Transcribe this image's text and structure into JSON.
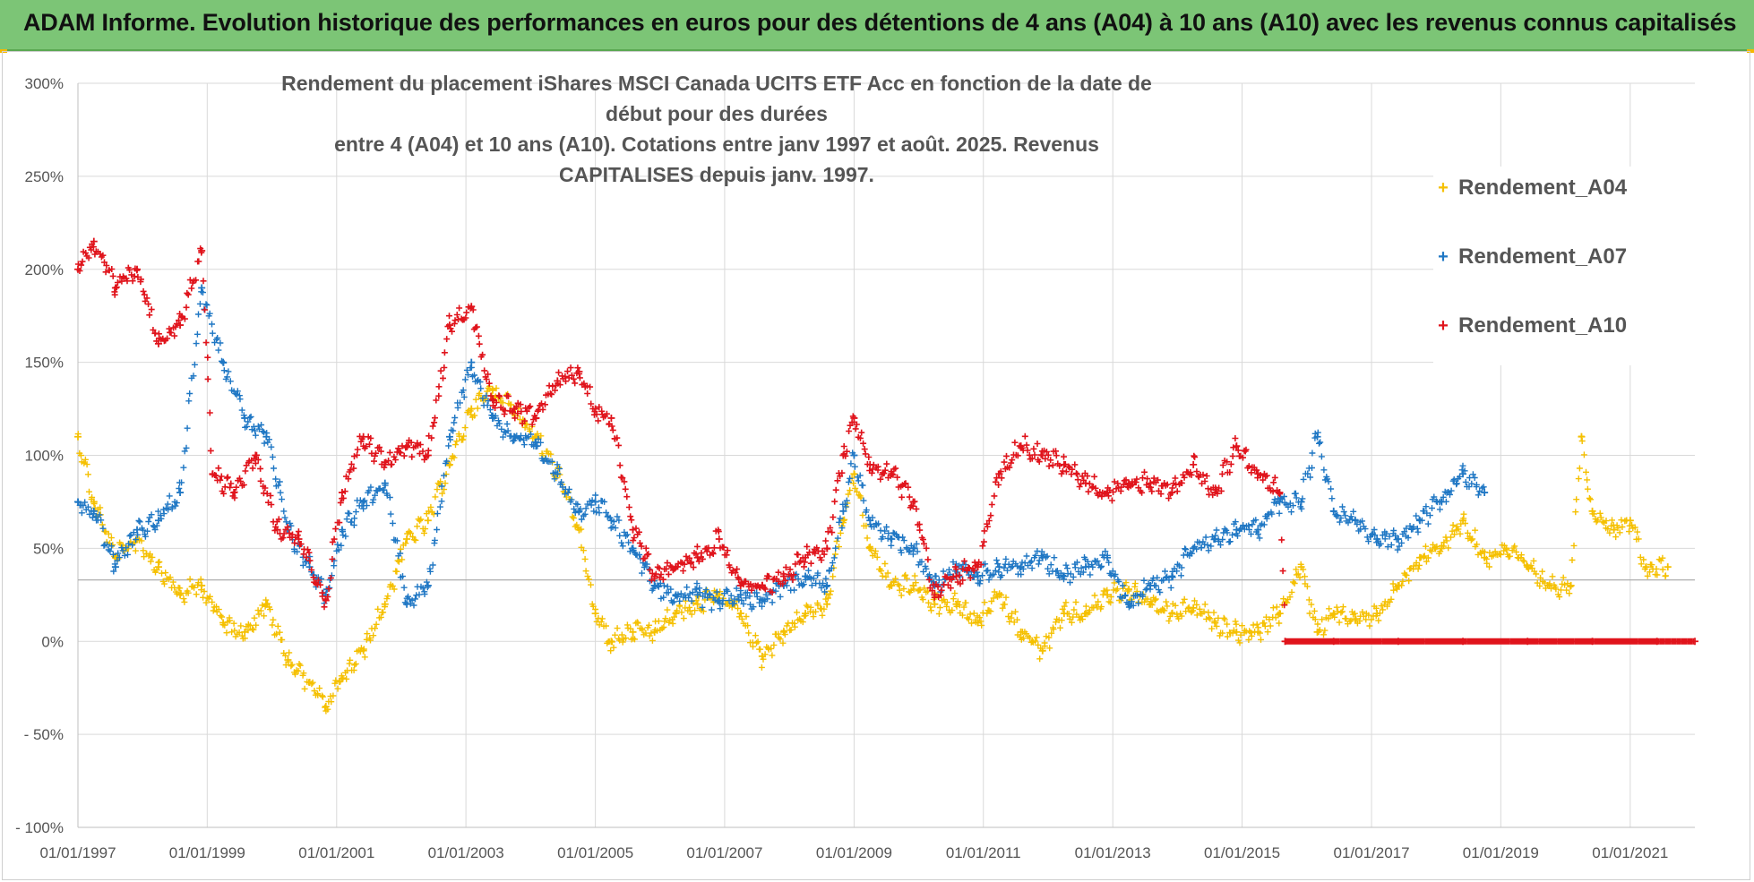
{
  "header": {
    "title": "ADAM Informe. Evolution historique des performances en euros pour des détentions de 4 ans (A04) à 10 ans (A10) avec les revenus connus capitalisés"
  },
  "chart_data": {
    "type": "scatter",
    "title_lines": [
      "Rendement du placement iShares MSCI Canada UCITS ETF Acc en fonction de la date de début pour des durées",
      "entre 4 (A04) et 10 ans (A10).  Cotations entre janv 1997 et août. 2025. Revenus CAPITALISES depuis janv. 1997."
    ],
    "xlabel": "",
    "ylabel": "",
    "x_range": [
      "1997-01-01",
      "2022-01-01"
    ],
    "ylim": [
      -100,
      300
    ],
    "y_ticks": [
      300,
      250,
      200,
      150,
      100,
      50,
      0,
      -50,
      -100
    ],
    "y_tick_labels": [
      "300%",
      "250%",
      "200%",
      "150%",
      "100%",
      "50%",
      "0%",
      "- 50%",
      "- 100%"
    ],
    "x_ticks": [
      "1997-01-01",
      "1999-01-01",
      "2001-01-01",
      "2003-01-01",
      "2005-01-01",
      "2007-01-01",
      "2009-01-01",
      "2011-01-01",
      "2013-01-01",
      "2015-01-01",
      "2017-01-01",
      "2019-01-01",
      "2021-01-01"
    ],
    "x_tick_labels": [
      "01/01/1997",
      "01/01/1999",
      "01/01/2001",
      "01/01/2003",
      "01/01/2005",
      "01/01/2007",
      "01/01/2009",
      "01/01/2011",
      "01/01/2013",
      "01/01/2015",
      "01/01/2017",
      "01/01/2019",
      "01/01/2021"
    ],
    "reference_line_y": 33,
    "grid": true,
    "legend_position": "top-right",
    "series": [
      {
        "name": "Rendement_A04",
        "color": "#f5c000",
        "marker": "+",
        "points": [
          [
            "1997-01-01",
            110
          ],
          [
            "1997-04-01",
            75
          ],
          [
            "1997-08-01",
            45
          ],
          [
            "1997-12-01",
            55
          ],
          [
            "1998-04-01",
            40
          ],
          [
            "1998-08-01",
            25
          ],
          [
            "1998-12-01",
            30
          ],
          [
            "1999-04-01",
            10
          ],
          [
            "1999-08-01",
            5
          ],
          [
            "1999-12-01",
            20
          ],
          [
            "2000-04-01",
            -10
          ],
          [
            "2000-08-01",
            -22
          ],
          [
            "2000-11-01",
            -35
          ],
          [
            "2001-02-01",
            -20
          ],
          [
            "2001-06-01",
            -5
          ],
          [
            "2001-10-01",
            20
          ],
          [
            "2002-02-01",
            55
          ],
          [
            "2002-06-01",
            65
          ],
          [
            "2002-10-01",
            95
          ],
          [
            "2003-02-01",
            125
          ],
          [
            "2003-06-01",
            135
          ],
          [
            "2003-10-01",
            125
          ],
          [
            "2004-02-01",
            110
          ],
          [
            "2004-06-01",
            90
          ],
          [
            "2004-10-01",
            60
          ],
          [
            "2005-01-01",
            15
          ],
          [
            "2005-04-01",
            0
          ],
          [
            "2005-08-01",
            5
          ],
          [
            "2005-12-01",
            5
          ],
          [
            "2006-04-01",
            15
          ],
          [
            "2006-08-01",
            20
          ],
          [
            "2006-12-01",
            25
          ],
          [
            "2007-04-01",
            15
          ],
          [
            "2007-08-01",
            -8
          ],
          [
            "2007-12-01",
            5
          ],
          [
            "2008-04-01",
            15
          ],
          [
            "2008-08-01",
            20
          ],
          [
            "2008-11-01",
            65
          ],
          [
            "2009-01-01",
            90
          ],
          [
            "2009-04-01",
            50
          ],
          [
            "2009-08-01",
            30
          ],
          [
            "2009-12-01",
            30
          ],
          [
            "2010-04-01",
            20
          ],
          [
            "2010-08-01",
            20
          ],
          [
            "2010-12-01",
            10
          ],
          [
            "2011-04-01",
            25
          ],
          [
            "2011-08-01",
            5
          ],
          [
            "2011-12-01",
            -5
          ],
          [
            "2012-04-01",
            15
          ],
          [
            "2012-08-01",
            15
          ],
          [
            "2012-12-01",
            25
          ],
          [
            "2013-04-01",
            28
          ],
          [
            "2013-08-01",
            20
          ],
          [
            "2013-12-01",
            15
          ],
          [
            "2014-04-01",
            18
          ],
          [
            "2014-08-01",
            10
          ],
          [
            "2014-12-01",
            5
          ],
          [
            "2015-04-01",
            5
          ],
          [
            "2015-08-01",
            15
          ],
          [
            "2015-12-01",
            40
          ],
          [
            "2016-03-01",
            5
          ],
          [
            "2016-06-01",
            15
          ],
          [
            "2016-10-01",
            12
          ],
          [
            "2017-02-01",
            15
          ],
          [
            "2017-06-01",
            30
          ],
          [
            "2017-10-01",
            45
          ],
          [
            "2018-02-01",
            50
          ],
          [
            "2018-06-01",
            65
          ],
          [
            "2018-10-01",
            45
          ],
          [
            "2019-02-01",
            50
          ],
          [
            "2019-06-01",
            40
          ],
          [
            "2019-10-01",
            30
          ],
          [
            "2020-02-01",
            30
          ],
          [
            "2020-04-01",
            110
          ],
          [
            "2020-06-01",
            70
          ],
          [
            "2020-10-01",
            60
          ],
          [
            "2021-01-01",
            65
          ],
          [
            "2021-04-01",
            40
          ],
          [
            "2021-08-01",
            40
          ]
        ]
      },
      {
        "name": "Rendement_A07",
        "color": "#1f77c4",
        "marker": "+",
        "points": [
          [
            "1997-01-01",
            75
          ],
          [
            "1997-04-01",
            70
          ],
          [
            "1997-08-01",
            40
          ],
          [
            "1997-12-01",
            60
          ],
          [
            "1998-04-01",
            65
          ],
          [
            "1998-08-01",
            80
          ],
          [
            "1998-12-01",
            190
          ],
          [
            "1999-04-01",
            150
          ],
          [
            "1999-08-01",
            120
          ],
          [
            "1999-12-01",
            110
          ],
          [
            "2000-04-01",
            60
          ],
          [
            "2000-08-01",
            40
          ],
          [
            "2000-11-01",
            25
          ],
          [
            "2001-02-01",
            60
          ],
          [
            "2001-06-01",
            75
          ],
          [
            "2001-10-01",
            85
          ],
          [
            "2002-02-01",
            20
          ],
          [
            "2002-06-01",
            30
          ],
          [
            "2002-10-01",
            110
          ],
          [
            "2003-02-01",
            150
          ],
          [
            "2003-06-01",
            120
          ],
          [
            "2003-10-01",
            110
          ],
          [
            "2004-02-01",
            105
          ],
          [
            "2004-06-01",
            90
          ],
          [
            "2004-10-01",
            70
          ],
          [
            "2005-01-01",
            75
          ],
          [
            "2005-04-01",
            65
          ],
          [
            "2005-08-01",
            50
          ],
          [
            "2005-12-01",
            30
          ],
          [
            "2006-04-01",
            25
          ],
          [
            "2006-08-01",
            25
          ],
          [
            "2006-12-01",
            22
          ],
          [
            "2007-04-01",
            25
          ],
          [
            "2007-08-01",
            22
          ],
          [
            "2007-12-01",
            30
          ],
          [
            "2008-04-01",
            35
          ],
          [
            "2008-08-01",
            30
          ],
          [
            "2008-11-01",
            70
          ],
          [
            "2009-01-01",
            100
          ],
          [
            "2009-04-01",
            65
          ],
          [
            "2009-08-01",
            55
          ],
          [
            "2009-12-01",
            50
          ],
          [
            "2010-04-01",
            30
          ],
          [
            "2010-08-01",
            40
          ],
          [
            "2010-12-01",
            35
          ],
          [
            "2011-04-01",
            40
          ],
          [
            "2011-08-01",
            40
          ],
          [
            "2011-12-01",
            45
          ],
          [
            "2012-04-01",
            35
          ],
          [
            "2012-08-01",
            40
          ],
          [
            "2012-12-01",
            45
          ],
          [
            "2013-04-01",
            20
          ],
          [
            "2013-08-01",
            30
          ],
          [
            "2013-12-01",
            35
          ],
          [
            "2014-04-01",
            50
          ],
          [
            "2014-08-01",
            55
          ],
          [
            "2014-12-01",
            60
          ],
          [
            "2015-04-01",
            60
          ],
          [
            "2015-08-01",
            75
          ],
          [
            "2015-12-01",
            75
          ],
          [
            "2016-03-01",
            110
          ],
          [
            "2016-06-01",
            70
          ],
          [
            "2016-10-01",
            65
          ],
          [
            "2017-02-01",
            55
          ],
          [
            "2017-06-01",
            55
          ],
          [
            "2017-10-01",
            65
          ],
          [
            "2018-02-01",
            75
          ],
          [
            "2018-06-01",
            90
          ],
          [
            "2018-10-01",
            80
          ]
        ]
      },
      {
        "name": "Rendement_A10",
        "color": "#e0141c",
        "marker": "+",
        "points": [
          [
            "1997-01-01",
            200
          ],
          [
            "1997-04-01",
            215
          ],
          [
            "1997-08-01",
            190
          ],
          [
            "1997-12-01",
            200
          ],
          [
            "1998-04-01",
            160
          ],
          [
            "1998-08-01",
            170
          ],
          [
            "1998-12-01",
            210
          ],
          [
            "1999-02-01",
            90
          ],
          [
            "1999-06-01",
            80
          ],
          [
            "1999-10-01",
            100
          ],
          [
            "2000-02-01",
            60
          ],
          [
            "2000-06-01",
            55
          ],
          [
            "2000-11-01",
            22
          ],
          [
            "2001-02-01",
            80
          ],
          [
            "2001-06-01",
            110
          ],
          [
            "2001-10-01",
            95
          ],
          [
            "2002-02-01",
            105
          ],
          [
            "2002-06-01",
            100
          ],
          [
            "2002-10-01",
            170
          ],
          [
            "2003-02-01",
            180
          ],
          [
            "2003-06-01",
            130
          ],
          [
            "2003-10-01",
            125
          ],
          [
            "2004-02-01",
            120
          ],
          [
            "2004-06-01",
            140
          ],
          [
            "2004-10-01",
            145
          ],
          [
            "2005-01-01",
            125
          ],
          [
            "2005-04-01",
            120
          ],
          [
            "2005-08-01",
            60
          ],
          [
            "2005-12-01",
            35
          ],
          [
            "2006-04-01",
            40
          ],
          [
            "2006-08-01",
            45
          ],
          [
            "2006-12-01",
            55
          ],
          [
            "2007-04-01",
            30
          ],
          [
            "2007-08-01",
            30
          ],
          [
            "2007-12-01",
            35
          ],
          [
            "2008-04-01",
            45
          ],
          [
            "2008-08-01",
            50
          ],
          [
            "2008-11-01",
            100
          ],
          [
            "2009-01-01",
            120
          ],
          [
            "2009-04-01",
            95
          ],
          [
            "2009-08-01",
            90
          ],
          [
            "2009-12-01",
            75
          ],
          [
            "2010-04-01",
            25
          ],
          [
            "2010-08-01",
            35
          ],
          [
            "2010-12-01",
            40
          ],
          [
            "2011-04-01",
            90
          ],
          [
            "2011-08-01",
            105
          ],
          [
            "2011-12-01",
            100
          ],
          [
            "2012-04-01",
            95
          ],
          [
            "2012-08-01",
            85
          ],
          [
            "2012-12-01",
            80
          ],
          [
            "2013-04-01",
            85
          ],
          [
            "2013-08-01",
            85
          ],
          [
            "2013-12-01",
            80
          ],
          [
            "2014-04-01",
            95
          ],
          [
            "2014-08-01",
            80
          ],
          [
            "2014-12-01",
            105
          ],
          [
            "2015-04-01",
            90
          ],
          [
            "2015-08-01",
            80
          ],
          [
            "2015-09-01",
            0
          ],
          [
            "2016-06-01",
            0
          ],
          [
            "2017-06-01",
            0
          ],
          [
            "2018-06-01",
            0
          ],
          [
            "2019-06-01",
            0
          ],
          [
            "2020-06-01",
            0
          ],
          [
            "2021-06-01",
            0
          ],
          [
            "2022-01-01",
            0
          ]
        ]
      }
    ]
  }
}
